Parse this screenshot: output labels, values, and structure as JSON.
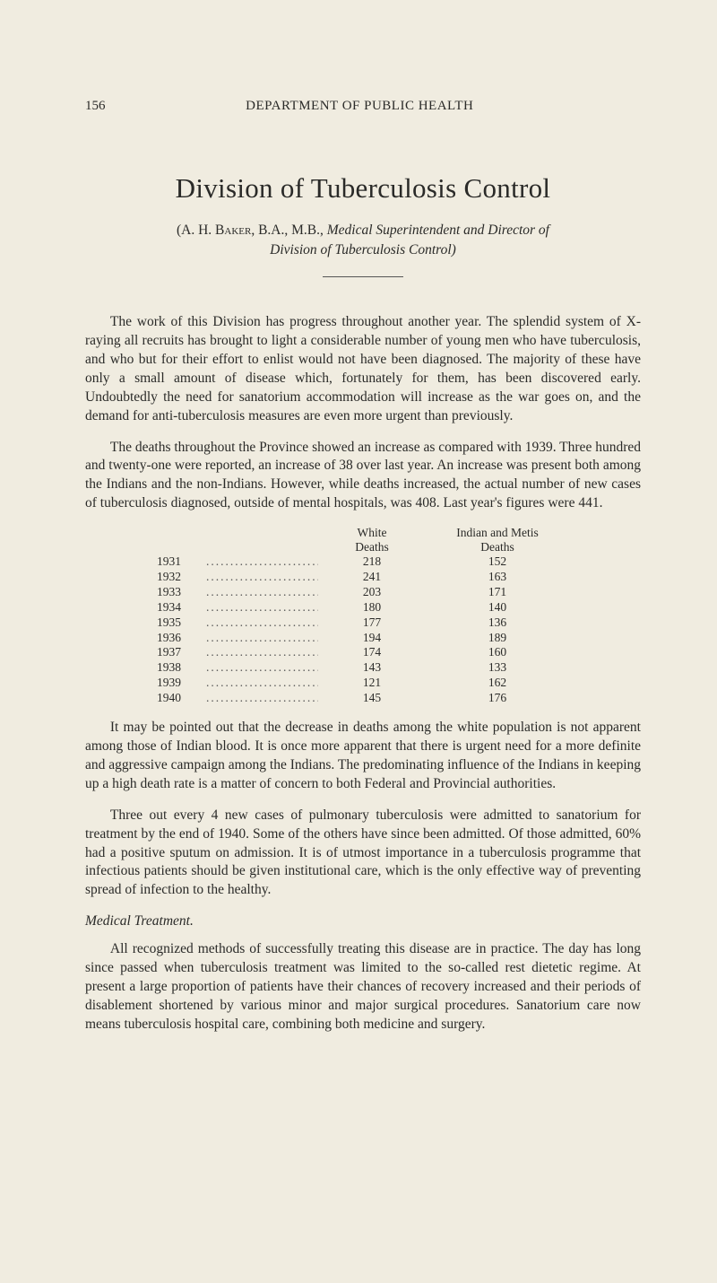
{
  "page_number": "156",
  "running_header": "DEPARTMENT OF PUBLIC HEALTH",
  "title": "Division of Tuberculosis Control",
  "author_prefix": "(A. H. ",
  "author_surname": "Baker,",
  "author_degrees": " B.A., M.B., ",
  "author_role": "Medical Superintendent and Director of",
  "author_role2": "Division of Tuberculosis Control)",
  "para1": "The work of this Division has progress throughout another year. The splendid system of X-raying all recruits has brought to light a considerable number of young men who have tuberculosis, and who but for their effort to enlist would not have been diagnosed. The majority of these have only a small amount of disease which, for­tunately for them, has been discovered early. Undoubtedly the need for sanatorium accommodation will increase as the war goes on, and the demand for anti-tuberculosis measures are even more urgent than previously.",
  "para2": "The deaths throughout the Province showed an increase as compared with 1939. Three hundred and twenty-one were reported, an increase of 38 over last year. An increase was present both among the Indians and the non-Indians. However, while deaths increased, the actual number of new cases of tuberculosis diagnosed, outside of mental hospitals, was 408. Last year's figures were 441.",
  "table": {
    "col1_line1": "White",
    "col1_line2": "Deaths",
    "col2_line1": "Indian and Metis",
    "col2_line2": "Deaths",
    "rows": [
      {
        "year": "1931",
        "white": "218",
        "indian": "152"
      },
      {
        "year": "1932",
        "white": "241",
        "indian": "163"
      },
      {
        "year": "1933",
        "white": "203",
        "indian": "171"
      },
      {
        "year": "1934",
        "white": "180",
        "indian": "140"
      },
      {
        "year": "1935",
        "white": "177",
        "indian": "136"
      },
      {
        "year": "1936",
        "white": "194",
        "indian": "189"
      },
      {
        "year": "1937",
        "white": "174",
        "indian": "160"
      },
      {
        "year": "1938",
        "white": "143",
        "indian": "133"
      },
      {
        "year": "1939",
        "white": "121",
        "indian": "162"
      },
      {
        "year": "1940",
        "white": "145",
        "indian": "176"
      }
    ]
  },
  "para3": "It may be pointed out that the decrease in deaths among the white population is not apparent among those of Indian blood. It is once more apparent that there is urgent need for a more definite and aggressive campaign among the Indians. The predominating influence of the Indians in keeping up a high death rate is a matter of concern to both Federal and Provincial authorities.",
  "para4": "Three out every 4 new cases of pulmonary tuberculosis were admitted to sanatorium for treatment by the end of 1940. Some of the others have since been admitted. Of those admitted, 60% had a positive sputum on admission. It is of utmost importance in a tuberculosis programme that infectious patients should be given institutional care, which is the only effective way of preventing spread of infection to the healthy.",
  "subhead": "Medical Treatment.",
  "para5": "All recognized methods of successfully treating this disease are in practice. The day has long since passed when tuberculosis treat­ment was limited to the so-called rest dietetic regime. At present a large proportion of patients have their chances of recovery in­creased and their periods of disablement shortened by various minor and major surgical procedures. Sanatorium care now means tuberculosis hospital care, combining both medicine and surgery.",
  "colors": {
    "background": "#f0ece0",
    "text": "#2a2a28"
  },
  "typography": {
    "body_fontsize_pt": 15.5,
    "title_fontsize_pt": 31,
    "table_fontsize_pt": 13.5
  }
}
